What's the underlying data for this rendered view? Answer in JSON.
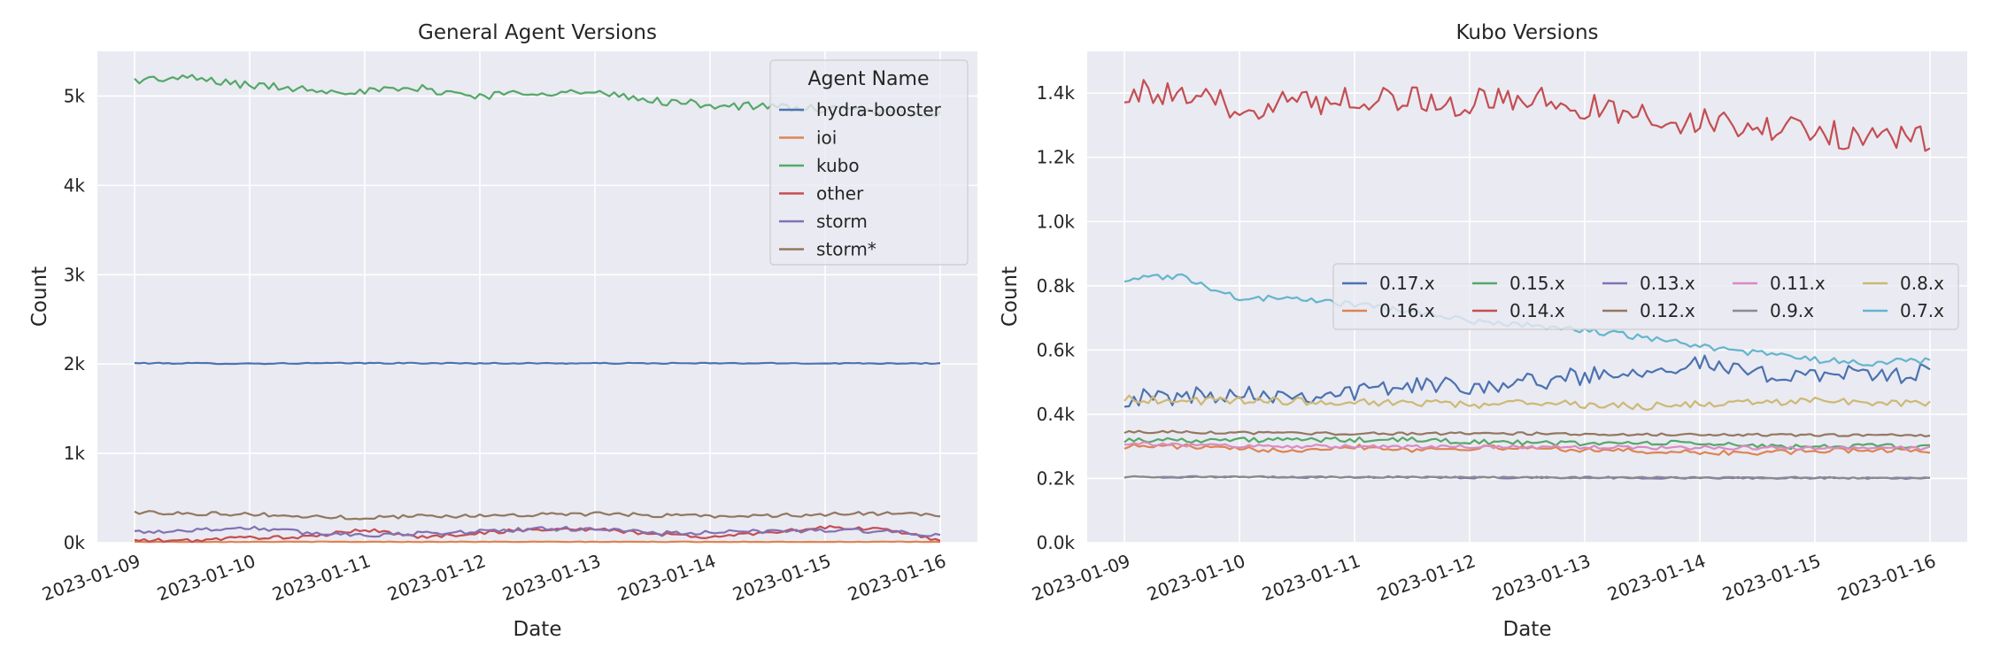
{
  "chart_data": [
    {
      "type": "line",
      "title": "General Agent Versions",
      "xlabel": "Date",
      "ylabel": "Count",
      "x_ticks": [
        "2023-01-09",
        "2023-01-10",
        "2023-01-11",
        "2023-01-12",
        "2023-01-13",
        "2023-01-14",
        "2023-01-15",
        "2023-01-16"
      ],
      "x_range": [
        "2023-01-09T00:00",
        "2023-01-16T00:00"
      ],
      "y_ticks": [
        "0k",
        "1k",
        "2k",
        "3k",
        "4k",
        "5k"
      ],
      "y_tick_values": [
        0,
        1000,
        2000,
        3000,
        4000,
        5000
      ],
      "ylim": [
        0,
        5500
      ],
      "grid": true,
      "legend": {
        "title": "Agent Name",
        "placement": "top-right"
      },
      "series": [
        {
          "name": "hydra-booster",
          "color": "#4c72b0",
          "base": [
            2010,
            2008,
            2005,
            2008,
            2010,
            2009,
            2008,
            2008,
            2008,
            2008,
            2008,
            2008,
            2008,
            2008,
            2008
          ],
          "noise": 6
        },
        {
          "name": "ioi",
          "color": "#dd8452",
          "base": [
            10,
            10,
            10,
            10,
            10,
            10,
            10,
            10,
            10,
            10,
            10,
            10,
            10,
            10,
            10
          ],
          "noise": 3
        },
        {
          "name": "kubo",
          "color": "#55a868",
          "base": [
            5180,
            5200,
            5120,
            5080,
            5050,
            5080,
            5000,
            5050,
            5030,
            4950,
            4900,
            4880,
            4850,
            4820,
            4800
          ],
          "noise": 45
        },
        {
          "name": "other",
          "color": "#c44e52",
          "base": [
            25,
            25,
            60,
            60,
            150,
            60,
            110,
            150,
            150,
            100,
            60,
            120,
            170,
            150,
            30
          ],
          "noise": 20
        },
        {
          "name": "storm",
          "color": "#8172b3",
          "base": [
            120,
            140,
            170,
            110,
            90,
            100,
            130,
            150,
            160,
            110,
            110,
            130,
            140,
            130,
            70
          ],
          "noise": 25
        },
        {
          "name": "storm*",
          "color": "#937860",
          "base": [
            340,
            330,
            320,
            290,
            280,
            300,
            300,
            320,
            320,
            310,
            300,
            300,
            320,
            330,
            300
          ],
          "noise": 22
        }
      ]
    },
    {
      "type": "line",
      "title": "Kubo Versions",
      "xlabel": "Date",
      "ylabel": "Count",
      "x_ticks": [
        "2023-01-09",
        "2023-01-10",
        "2023-01-11",
        "2023-01-12",
        "2023-01-13",
        "2023-01-14",
        "2023-01-15",
        "2023-01-16"
      ],
      "x_range": [
        "2023-01-09T00:00",
        "2023-01-16T00:00"
      ],
      "y_ticks": [
        "0.0k",
        "0.2k",
        "0.4k",
        "0.6k",
        "0.8k",
        "1.0k",
        "1.2k",
        "1.4k"
      ],
      "y_tick_values": [
        0,
        200,
        400,
        600,
        800,
        1000,
        1200,
        1400
      ],
      "ylim": [
        0,
        1530
      ],
      "grid": true,
      "legend": {
        "placement": "center-right",
        "columns": 5
      },
      "series": [
        {
          "name": "0.17.x",
          "color": "#4c72b0",
          "base": [
            450,
            455,
            470,
            460,
            470,
            490,
            490,
            500,
            520,
            540,
            560,
            520,
            530,
            520,
            530
          ],
          "noise": 28
        },
        {
          "name": "0.16.x",
          "color": "#dd8452",
          "base": [
            300,
            300,
            290,
            290,
            300,
            290,
            295,
            295,
            290,
            285,
            280,
            280,
            285,
            290,
            285
          ],
          "noise": 8
        },
        {
          "name": "0.15.x",
          "color": "#55a868",
          "base": [
            320,
            320,
            320,
            320,
            320,
            320,
            315,
            310,
            310,
            310,
            310,
            300,
            300,
            300,
            300
          ],
          "noise": 8
        },
        {
          "name": "0.14.x",
          "color": "#c44e52",
          "base": [
            1410,
            1380,
            1360,
            1370,
            1390,
            1380,
            1370,
            1380,
            1360,
            1330,
            1310,
            1290,
            1280,
            1260,
            1250
          ],
          "noise": 45
        },
        {
          "name": "0.13.x",
          "color": "#8172b3",
          "base": [
            205,
            205,
            204,
            204,
            204,
            204,
            203,
            203,
            203,
            202,
            202,
            202,
            202,
            201,
            201
          ],
          "noise": 3
        },
        {
          "name": "0.12.x",
          "color": "#937860",
          "base": [
            345,
            345,
            342,
            340,
            340,
            340,
            340,
            340,
            338,
            337,
            336,
            336,
            335,
            335,
            335
          ],
          "noise": 4
        },
        {
          "name": "0.11.x",
          "color": "#da8bc3",
          "base": [
            310,
            305,
            300,
            300,
            300,
            298,
            298,
            297,
            297,
            296,
            296,
            295,
            295,
            295,
            295
          ],
          "noise": 6
        },
        {
          "name": "0.9.x",
          "color": "#8c8c8c",
          "base": [
            205,
            205,
            205,
            204,
            204,
            204,
            204,
            203,
            203,
            203,
            203,
            202,
            202,
            202,
            202
          ],
          "noise": 2
        },
        {
          "name": "0.8.x",
          "color": "#ccb974",
          "base": [
            450,
            440,
            445,
            440,
            440,
            435,
            430,
            435,
            430,
            425,
            430,
            435,
            440,
            435,
            430
          ],
          "noise": 12
        },
        {
          "name": "0.7.x",
          "color": "#64b5cd",
          "base": [
            820,
            830,
            760,
            760,
            740,
            720,
            690,
            680,
            660,
            640,
            610,
            590,
            570,
            560,
            570
          ],
          "noise": 10
        }
      ]
    }
  ]
}
